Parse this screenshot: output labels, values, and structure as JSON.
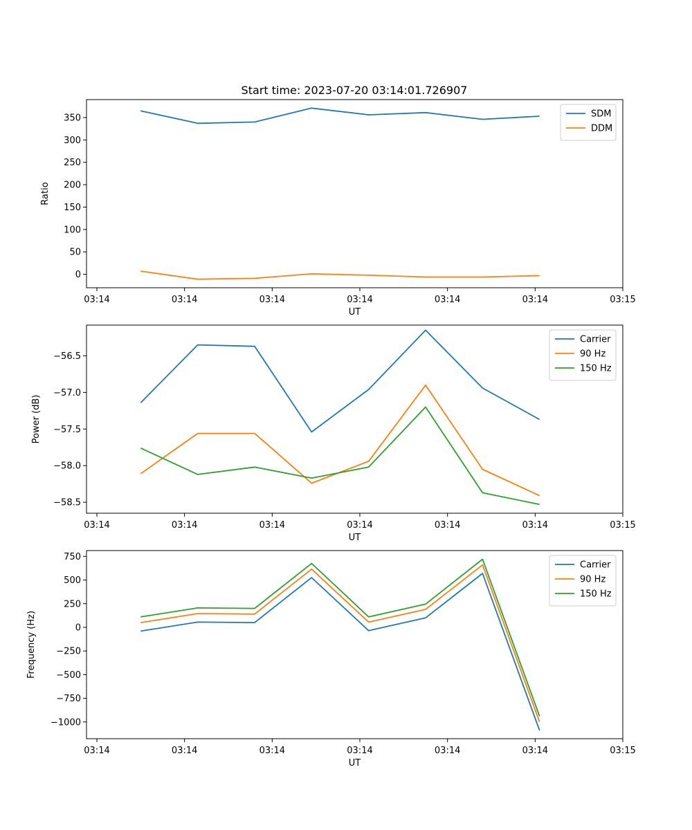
{
  "figure": {
    "title": "Start time: 2023-07-20 03:14:01.726907"
  },
  "chart_data": [
    {
      "type": "line",
      "title": "Start time: 2023-07-20 03:14:01.726907",
      "xlabel": "UT",
      "ylabel": "Ratio",
      "xlim": [
        0,
        6
      ],
      "ylim": [
        -30,
        390
      ],
      "x_tick_values": [
        0,
        1,
        2,
        3,
        4,
        5,
        6
      ],
      "x_tick_labels": [
        "03:14",
        "03:14",
        "03:14",
        "03:14",
        "03:14",
        "03:14",
        "03:15"
      ],
      "y_tick_values": [
        0,
        50,
        100,
        150,
        200,
        250,
        300,
        350
      ],
      "y_tick_labels": [
        "0",
        "50",
        "100",
        "150",
        "200",
        "250",
        "300",
        "350"
      ],
      "x": [
        0.5,
        1.15,
        1.8,
        2.45,
        3.1,
        3.75,
        4.4,
        5.05
      ],
      "series": [
        {
          "name": "SDM",
          "color": "#1f77b4",
          "values": [
            365,
            337,
            340,
            371,
            356,
            361,
            346,
            353
          ]
        },
        {
          "name": "DDM",
          "color": "#ff7f0e",
          "values": [
            7,
            -11,
            -9,
            1,
            -2,
            -6,
            -6,
            -3
          ]
        }
      ],
      "legend": "top-right"
    },
    {
      "type": "line",
      "title": "",
      "xlabel": "UT",
      "ylabel": "Power (dB)",
      "xlim": [
        0,
        6
      ],
      "ylim": [
        -58.65,
        -56.08
      ],
      "x_tick_values": [
        0,
        1,
        2,
        3,
        4,
        5,
        6
      ],
      "x_tick_labels": [
        "03:14",
        "03:14",
        "03:14",
        "03:14",
        "03:14",
        "03:14",
        "03:15"
      ],
      "y_tick_values": [
        -56.5,
        -57.0,
        -57.5,
        -58.0,
        -58.5
      ],
      "y_tick_labels": [
        "−56.5",
        "−57.0",
        "−57.5",
        "−58.0",
        "−58.5"
      ],
      "x": [
        0.5,
        1.15,
        1.8,
        2.45,
        3.1,
        3.75,
        4.4,
        5.05
      ],
      "series": [
        {
          "name": "Carrier",
          "color": "#1f77b4",
          "values": [
            -57.14,
            -56.35,
            -56.37,
            -57.54,
            -56.96,
            -56.15,
            -56.94,
            -57.37
          ]
        },
        {
          "name": "90 Hz",
          "color": "#ff7f0e",
          "values": [
            -58.11,
            -57.56,
            -57.56,
            -58.24,
            -57.94,
            -56.9,
            -58.05,
            -58.41
          ]
        },
        {
          "name": "150 Hz",
          "color": "#2ca02c",
          "values": [
            -57.76,
            -58.12,
            -58.02,
            -58.17,
            -58.02,
            -57.2,
            -58.37,
            -58.53
          ]
        }
      ],
      "legend": "top-right"
    },
    {
      "type": "line",
      "title": "",
      "xlabel": "UT",
      "ylabel": "Frequency (Hz)",
      "xlim": [
        0,
        6
      ],
      "ylim": [
        -1177,
        811
      ],
      "x_tick_values": [
        0,
        1,
        2,
        3,
        4,
        5,
        6
      ],
      "x_tick_labels": [
        "03:14",
        "03:14",
        "03:14",
        "03:14",
        "03:14",
        "03:14",
        "03:15"
      ],
      "y_tick_values": [
        750,
        500,
        250,
        0,
        -250,
        -500,
        -750,
        -1000
      ],
      "y_tick_labels": [
        "750",
        "500",
        "250",
        "0",
        "−250",
        "−500",
        "−750",
        "−1000"
      ],
      "x": [
        0.5,
        1.15,
        1.8,
        2.45,
        3.1,
        3.75,
        4.4,
        5.05
      ],
      "series": [
        {
          "name": "Carrier",
          "color": "#1f77b4",
          "values": [
            -40,
            55,
            50,
            525,
            -35,
            100,
            570,
            -1090
          ]
        },
        {
          "name": "90 Hz",
          "color": "#ff7f0e",
          "values": [
            50,
            145,
            140,
            615,
            55,
            190,
            660,
            -1000
          ]
        },
        {
          "name": "150 Hz",
          "color": "#2ca02c",
          "values": [
            110,
            205,
            200,
            675,
            110,
            245,
            720,
            -940
          ]
        }
      ],
      "legend": "top-right"
    }
  ]
}
